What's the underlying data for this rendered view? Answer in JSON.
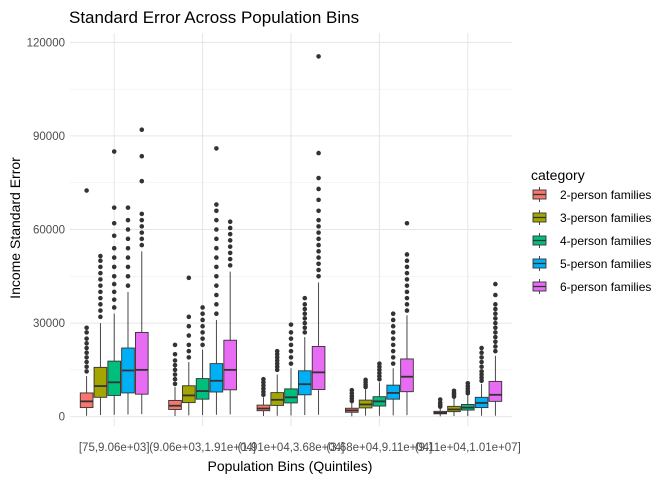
{
  "chart_data": {
    "type": "box",
    "title": "Standard Error Across Population Bins",
    "xlabel": "Population Bins (Quintiles)",
    "ylabel": "Income Standard Error",
    "ylim": [
      -3000,
      123000
    ],
    "yticks": [
      0,
      30000,
      60000,
      90000,
      120000
    ],
    "ytick_labels": [
      "0",
      "30000",
      "60000",
      "90000",
      "120000"
    ],
    "grid": true,
    "legend_position": "right",
    "legend_title": "category",
    "categories": [
      "[75,9.06e+03]",
      "(9.06e+03,1.91e+04]",
      "(1.91e+04,3.68e+04]",
      "(3.68e+04,9.11e+04]",
      "(9.11e+04,1.01e+07]"
    ],
    "series": [
      {
        "name": "2-person families",
        "color": "#F8766D",
        "boxes": [
          {
            "whisker_low": 300,
            "q1": 2900,
            "median": 4900,
            "q3": 7600,
            "whisker_high": 13000,
            "outliers": [
              14500,
              16000,
              17500,
              19000,
              20500,
              22000,
              23500,
              25000,
              27000,
              28500,
              72500
            ]
          },
          {
            "whisker_low": 200,
            "q1": 2300,
            "median": 3500,
            "q3": 5200,
            "whisker_high": 9500,
            "outliers": [
              10500,
              12000,
              13500,
              15000,
              16500,
              18000,
              20000,
              23000
            ]
          },
          {
            "whisker_low": 200,
            "q1": 1900,
            "median": 2600,
            "q3": 3700,
            "whisker_high": 6200,
            "outliers": [
              7000,
              8000,
              9000,
              10000,
              11000,
              12000
            ]
          },
          {
            "whisker_low": 100,
            "q1": 1400,
            "median": 2000,
            "q3": 2700,
            "whisker_high": 4500,
            "outliers": [
              5000,
              5800,
              6600,
              7500,
              8500
            ]
          },
          {
            "whisker_low": 100,
            "q1": 900,
            "median": 1200,
            "q3": 1700,
            "whisker_high": 2700,
            "outliers": [
              3200,
              3800,
              4500,
              5500
            ]
          }
        ]
      },
      {
        "name": "3-person families",
        "color": "#A3A500",
        "boxes": [
          {
            "whisker_low": 500,
            "q1": 6200,
            "median": 9800,
            "q3": 15800,
            "whisker_high": 30000,
            "outliers": [
              32000,
              34000,
              36000,
              38000,
              40000,
              42000,
              44000,
              46000,
              48000,
              50000,
              51500
            ]
          },
          {
            "whisker_low": 400,
            "q1": 4500,
            "median": 6800,
            "q3": 9900,
            "whisker_high": 17500,
            "outliers": [
              19000,
              21000,
              23000,
              26000,
              29000,
              32000,
              44500
            ]
          },
          {
            "whisker_low": 300,
            "q1": 3600,
            "median": 5400,
            "q3": 7700,
            "whisker_high": 13500,
            "outliers": [
              15000,
              16000,
              17000,
              18000,
              19000,
              20000,
              21000
            ]
          },
          {
            "whisker_low": 300,
            "q1": 2800,
            "median": 3900,
            "q3": 5300,
            "whisker_high": 8800,
            "outliers": [
              9500,
              10200,
              11000,
              11800
            ]
          },
          {
            "whisker_low": 200,
            "q1": 1600,
            "median": 2300,
            "q3": 3300,
            "whisker_high": 5800,
            "outliers": [
              6400,
              7000,
              7600,
              8300
            ]
          }
        ]
      },
      {
        "name": "4-person families",
        "color": "#00BF7D",
        "boxes": [
          {
            "whisker_low": 600,
            "q1": 6800,
            "median": 11000,
            "q3": 17800,
            "whisker_high": 33000,
            "outliers": [
              35000,
              37500,
              40000,
              42500,
              45000,
              48000,
              51000,
              54000,
              58000,
              62000,
              67000,
              85000
            ]
          },
          {
            "whisker_low": 500,
            "q1": 5600,
            "median": 8200,
            "q3": 12200,
            "whisker_high": 21500,
            "outliers": [
              23000,
              25000,
              27000,
              29000,
              31000,
              33000,
              35000
            ]
          },
          {
            "whisker_low": 400,
            "q1": 4400,
            "median": 6200,
            "q3": 8900,
            "whisker_high": 15500,
            "outliers": [
              17000,
              19000,
              21000,
              23000,
              25000,
              27000,
              29500
            ]
          },
          {
            "whisker_low": 300,
            "q1": 3400,
            "median": 4900,
            "q3": 6400,
            "whisker_high": 11000,
            "outliers": [
              12000,
              13000,
              14000,
              15000,
              16000,
              17000
            ]
          },
          {
            "whisker_low": 200,
            "q1": 2100,
            "median": 2900,
            "q3": 3900,
            "whisker_high": 6800,
            "outliers": [
              7500,
              8200,
              9000,
              9800,
              10700
            ]
          }
        ]
      },
      {
        "name": "5-person families",
        "color": "#00B0F6",
        "boxes": [
          {
            "whisker_low": 700,
            "q1": 7600,
            "median": 14800,
            "q3": 22000,
            "whisker_high": 40000,
            "outliers": [
              42000,
              45000,
              48000,
              51000,
              54000,
              57000,
              60000,
              63000,
              67000
            ]
          },
          {
            "whisker_low": 600,
            "q1": 7900,
            "median": 11500,
            "q3": 17000,
            "whisker_high": 31000,
            "outliers": [
              33000,
              36000,
              39000,
              42000,
              45000,
              48000,
              51000,
              54000,
              57000,
              60000,
              63000,
              66000,
              68000,
              86000
            ]
          },
          {
            "whisker_low": 500,
            "q1": 7000,
            "median": 10400,
            "q3": 14700,
            "whisker_high": 25500,
            "outliers": [
              27000,
              28500,
              30000,
              31500,
              33000,
              34500,
              36000,
              38000
            ]
          },
          {
            "whisker_low": 400,
            "q1": 5600,
            "median": 7600,
            "q3": 10100,
            "whisker_high": 15500,
            "outliers": [
              17000,
              19000,
              21000,
              23000,
              25000,
              27000,
              29000,
              31000,
              33000
            ]
          },
          {
            "whisker_low": 300,
            "q1": 2900,
            "median": 4400,
            "q3": 6200,
            "whisker_high": 10500,
            "outliers": [
              11500,
              12500,
              13500,
              14500,
              16000,
              17500,
              19000,
              20500,
              22000
            ]
          }
        ]
      },
      {
        "name": "6-person families",
        "color": "#E76BF3",
        "boxes": [
          {
            "whisker_low": 800,
            "q1": 7200,
            "median": 15000,
            "q3": 27000,
            "whisker_high": 53000,
            "outliers": [
              55000,
              57000,
              59000,
              61000,
              63000,
              65000,
              75500,
              83500,
              92000
            ]
          },
          {
            "whisker_low": 700,
            "q1": 8600,
            "median": 15000,
            "q3": 24500,
            "whisker_high": 46500,
            "outliers": [
              48500,
              50500,
              52500,
              54500,
              56500,
              58500,
              60500,
              62500
            ]
          },
          {
            "whisker_low": 600,
            "q1": 8700,
            "median": 14200,
            "q3": 22500,
            "whisker_high": 43000,
            "outliers": [
              45000,
              47000,
              49000,
              51000,
              53000,
              55000,
              57000,
              59000,
              61000,
              63000,
              66000,
              69500,
              73000,
              76500,
              84500,
              115500
            ]
          },
          {
            "whisker_low": 500,
            "q1": 8000,
            "median": 12800,
            "q3": 18500,
            "whisker_high": 32500,
            "outliers": [
              34000,
              36000,
              38000,
              40000,
              42000,
              44000,
              46000,
              48000,
              50000,
              52000,
              62000
            ]
          },
          {
            "whisker_low": 300,
            "q1": 4900,
            "median": 7000,
            "q3": 11300,
            "whisker_high": 19500,
            "outliers": [
              21000,
              22500,
              24000,
              25500,
              27000,
              28500,
              30000,
              31500,
              33000,
              34500,
              36000,
              39000,
              42500
            ]
          }
        ]
      }
    ]
  }
}
